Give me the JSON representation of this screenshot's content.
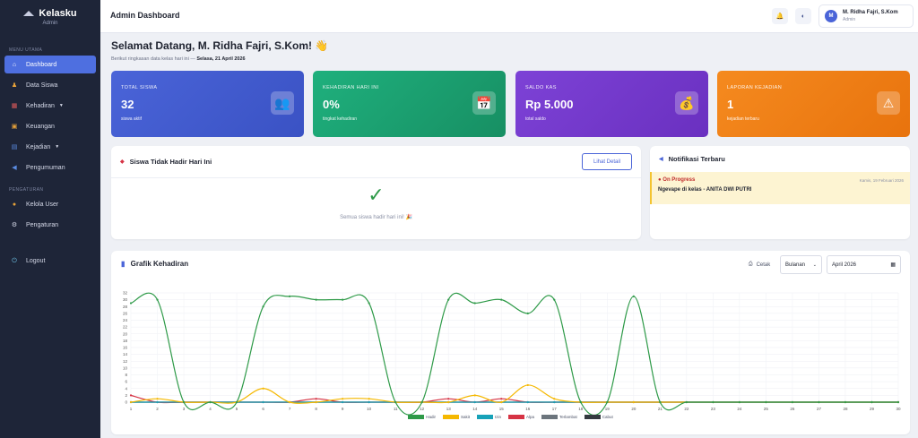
{
  "brand": {
    "name": "Kelasku",
    "sub": "Admin"
  },
  "sidebar": {
    "section_main": "MENU UTAMA",
    "section_settings": "PENGATURAN",
    "items": [
      {
        "label": "Dashboard",
        "icon": "home-icon"
      },
      {
        "label": "Data Siswa",
        "icon": "students-icon"
      },
      {
        "label": "Kehadiran",
        "icon": "calendar-icon"
      },
      {
        "label": "Keuangan",
        "icon": "wallet-icon"
      },
      {
        "label": "Kejadian",
        "icon": "file-icon"
      },
      {
        "label": "Pengumuman",
        "icon": "megaphone-icon"
      }
    ],
    "settings_items": [
      {
        "label": "Kelola User",
        "icon": "user-icon"
      },
      {
        "label": "Pengaturan",
        "icon": "gear-icon"
      }
    ],
    "logout": "Logout"
  },
  "topbar": {
    "title": "Admin Dashboard",
    "user_name": "M. Ridha Fajri, S.Kom",
    "user_role": "Admin",
    "avatar_initial": "M"
  },
  "welcome": {
    "title": "Selamat Datang, M. Ridha Fajri, S.Kom! 👋",
    "subtitle_prefix": "Berikut ringkasan data kelas hari ini —",
    "subtitle_date": "Selasa, 21 April 2026"
  },
  "stats": [
    {
      "label": "TOTAL SISWA",
      "value": "32",
      "desc": "siswa aktif",
      "color": "#4a64d8"
    },
    {
      "label": "KEHADIRAN HARI INI",
      "value": "0%",
      "desc": "tingkat kehadiran",
      "color": "#1aa876"
    },
    {
      "label": "SALDO KAS",
      "value": "Rp 5.000",
      "desc": "total saldo",
      "color": "#7b3fd1"
    },
    {
      "label": "LAPORAN KEJADIAN",
      "value": "1",
      "desc": "kejadian terbaru",
      "color": "#f08118"
    }
  ],
  "absent_panel": {
    "title": "Siswa Tidak Hadir Hari Ini",
    "button": "Lihat Detail",
    "empty_text": "Semua siswa hadir hari ini! 🎉"
  },
  "notif_panel": {
    "title": "Notifikasi Terbaru",
    "items": [
      {
        "status": "On Progress",
        "message": "Ngevape di kelas - ANITA DWI PUTRI",
        "date": "Kamis, 19 Februari 2026"
      }
    ]
  },
  "chart_panel": {
    "title": "Grafik Kehadiran",
    "print": "Cetak",
    "period": "Bulanan",
    "month": "April 2026"
  },
  "chart_data": {
    "type": "line",
    "x": [
      1,
      2,
      3,
      4,
      5,
      6,
      7,
      8,
      9,
      10,
      11,
      12,
      13,
      14,
      15,
      16,
      17,
      18,
      19,
      20,
      21,
      22,
      23,
      24,
      25,
      26,
      27,
      28,
      29,
      30
    ],
    "ylim": [
      0,
      32
    ],
    "yticks": [
      0,
      2,
      4,
      6,
      8,
      10,
      12,
      14,
      16,
      18,
      20,
      22,
      24,
      26,
      28,
      30,
      32
    ],
    "grid": true,
    "legend_position": "bottom",
    "series": [
      {
        "name": "Hadir",
        "color": "#2e9a48",
        "values": [
          29,
          30,
          0,
          0,
          0,
          28,
          31,
          30,
          30,
          29,
          0,
          0,
          30,
          29,
          30,
          26,
          30,
          0,
          0,
          31,
          0,
          0,
          0,
          0,
          0,
          0,
          0,
          0,
          0,
          0
        ]
      },
      {
        "name": "Sakit",
        "color": "#f5b800",
        "values": [
          0,
          1,
          0,
          0,
          0,
          4,
          0,
          0,
          1,
          1,
          0,
          0,
          0,
          2,
          0,
          5,
          1,
          0,
          0,
          0,
          0,
          0,
          0,
          0,
          0,
          0,
          0,
          0,
          0,
          0
        ]
      },
      {
        "name": "Izin",
        "color": "#17a2b8",
        "values": [
          0,
          0,
          0,
          0,
          0,
          0,
          0,
          0,
          0,
          0,
          0,
          0,
          0,
          0,
          0,
          0,
          0,
          0,
          0,
          0,
          0,
          0,
          0,
          0,
          0,
          0,
          0,
          0,
          0,
          0
        ]
      },
      {
        "name": "Alpa",
        "color": "#d63344",
        "values": [
          2,
          0,
          0,
          0,
          0,
          0,
          0,
          1,
          0,
          0,
          0,
          0,
          1,
          0,
          1,
          0,
          0,
          0,
          0,
          0,
          0,
          0,
          0,
          0,
          0,
          0,
          0,
          0,
          0,
          0
        ]
      },
      {
        "name": "Terlambat",
        "color": "#6c757d",
        "values": [
          0,
          0,
          0,
          0,
          0,
          0,
          0,
          0,
          0,
          0,
          0,
          0,
          0,
          0,
          0,
          0,
          0,
          0,
          0,
          0,
          0,
          0,
          0,
          0,
          0,
          0,
          0,
          0,
          0,
          0
        ]
      },
      {
        "name": "Cabut",
        "color": "#343a40",
        "values": [
          0,
          0,
          0,
          0,
          0,
          0,
          0,
          0,
          0,
          0,
          0,
          0,
          0,
          0,
          0,
          0,
          0,
          0,
          0,
          0,
          0,
          0,
          0,
          0,
          0,
          0,
          0,
          0,
          0,
          0
        ]
      }
    ]
  }
}
